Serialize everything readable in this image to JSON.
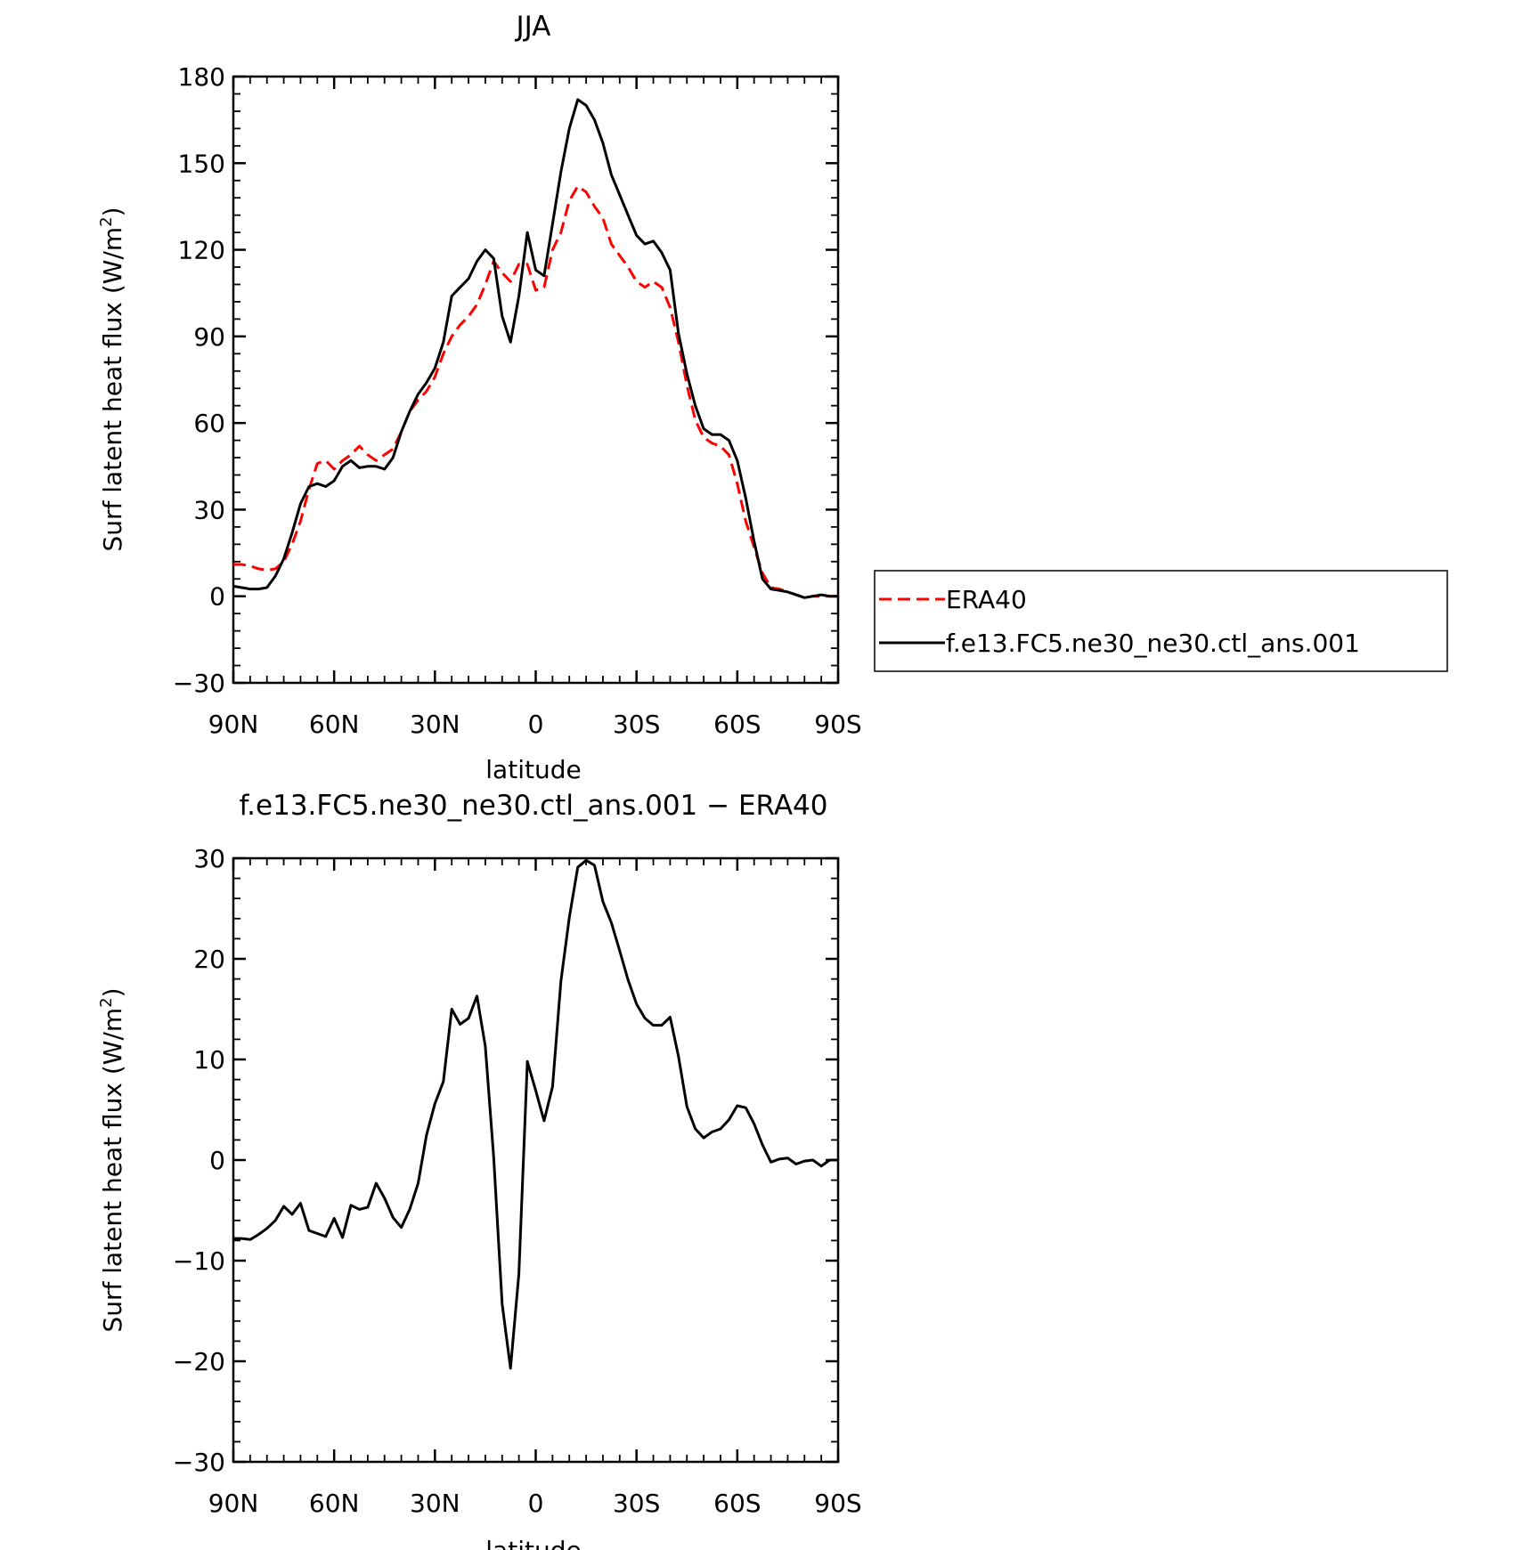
{
  "chart_data": [
    {
      "type": "line",
      "title": "JJA",
      "xlabel": "latitude",
      "ylabel": "Surf latent heat flux (W/m",
      "ylabel_sup": "2",
      "ylabel_close": ")",
      "xlim": [
        -90,
        90
      ],
      "ylim": [
        -30,
        180
      ],
      "x_ticks": [
        -90,
        -60,
        -30,
        0,
        30,
        60,
        90
      ],
      "x_tick_labels": [
        "90N",
        "60N",
        "30N",
        "0",
        "30S",
        "60S",
        "90S"
      ],
      "y_ticks": [
        -30,
        0,
        30,
        60,
        90,
        120,
        150,
        180
      ],
      "y_tick_labels": [
        "−30",
        "0",
        "30",
        "60",
        "90",
        "120",
        "150",
        "180"
      ],
      "grid": false,
      "legend_position": "right",
      "series": [
        {
          "name": "ERA40",
          "color": "#ff0000",
          "style": "dashed",
          "x": [
            -90,
            -87.5,
            -85,
            -82.5,
            -80,
            -77.5,
            -75,
            -72.5,
            -70,
            -67.5,
            -65,
            -62.5,
            -60,
            -57.5,
            -55,
            -52.5,
            -50,
            -47.5,
            -45,
            -42.5,
            -40,
            -37.5,
            -35,
            -32.5,
            -30,
            -27.5,
            -25,
            -22.5,
            -20,
            -17.5,
            -15,
            -12.5,
            -10,
            -7.5,
            -5,
            -2.5,
            0,
            2.5,
            5,
            7.5,
            10,
            12.5,
            15,
            17.5,
            20,
            22.5,
            25,
            27.5,
            30,
            32.5,
            35,
            37.5,
            40,
            42.5,
            45,
            47.5,
            50,
            52.5,
            55,
            57.5,
            60,
            62.5,
            65,
            67.5,
            70,
            72.5,
            75,
            77.5,
            80,
            82.5,
            85,
            87.5,
            90
          ],
          "y": [
            11,
            11,
            10.5,
            9.5,
            9,
            9.5,
            12,
            18,
            26,
            37,
            46,
            47,
            44,
            47,
            49,
            52,
            49,
            47,
            49,
            51,
            57,
            64,
            68,
            71,
            76,
            84,
            90,
            94,
            97,
            101,
            108,
            116,
            112,
            109,
            115,
            115,
            106,
            107,
            120,
            126,
            137,
            142,
            140,
            135,
            131,
            122,
            118,
            114,
            109,
            107,
            109,
            107,
            100,
            88,
            73,
            61,
            55,
            53,
            52,
            49,
            39,
            26,
            17,
            8,
            3,
            2.5,
            1.5,
            0.5,
            -0.5,
            0,
            0,
            0,
            0
          ]
        },
        {
          "name": "f.e13.FC5.ne30_ne30.ctl_ans.001",
          "color": "#000000",
          "style": "solid",
          "x": [
            -90,
            -87.5,
            -85,
            -82.5,
            -80,
            -77.5,
            -75,
            -72.5,
            -70,
            -67.5,
            -65,
            -62.5,
            -60,
            -57.5,
            -55,
            -52.5,
            -50,
            -47.5,
            -45,
            -42.5,
            -40,
            -37.5,
            -35,
            -32.5,
            -30,
            -27.5,
            -25,
            -22.5,
            -20,
            -17.5,
            -15,
            -12.5,
            -10,
            -7.5,
            -5,
            -2.5,
            0,
            2.5,
            5,
            7.5,
            10,
            12.5,
            15,
            17.5,
            20,
            22.5,
            25,
            27.5,
            30,
            32.5,
            35,
            37.5,
            40,
            42.5,
            45,
            47.5,
            50,
            52.5,
            55,
            57.5,
            60,
            62.5,
            65,
            67.5,
            70,
            72.5,
            75,
            77.5,
            80,
            82.5,
            85,
            87.5,
            90
          ],
          "y": [
            3.5,
            3,
            2.5,
            2.5,
            3,
            7,
            13,
            22,
            32,
            38,
            39,
            38,
            40,
            45,
            47,
            44.5,
            45,
            45,
            44,
            48,
            57,
            64,
            70,
            74,
            79,
            88,
            104,
            107,
            110,
            116,
            120,
            117,
            97,
            88,
            104,
            126,
            113,
            111,
            129,
            147,
            162,
            172,
            170,
            165,
            157,
            146,
            139,
            132,
            125,
            122,
            123,
            119,
            113,
            91,
            77,
            66,
            58,
            56,
            56,
            54,
            47,
            34,
            19,
            6,
            2.5,
            2,
            1.5,
            0.5,
            -0.5,
            0,
            0.5,
            0,
            0
          ]
        }
      ]
    },
    {
      "type": "line",
      "title": "f.e13.FC5.ne30_ne30.ctl_ans.001 − ERA40",
      "xlabel": "latitude",
      "ylabel": "Surf latent heat flux (W/m",
      "ylabel_sup": "2",
      "ylabel_close": ")",
      "xlim": [
        -90,
        90
      ],
      "ylim": [
        -30,
        30
      ],
      "x_ticks": [
        -90,
        -60,
        -30,
        0,
        30,
        60,
        90
      ],
      "x_tick_labels": [
        "90N",
        "60N",
        "30N",
        "0",
        "30S",
        "60S",
        "90S"
      ],
      "y_ticks": [
        -30,
        -20,
        -10,
        0,
        10,
        20,
        30
      ],
      "y_tick_labels": [
        "−30",
        "−20",
        "−10",
        "0",
        "10",
        "20",
        "30"
      ],
      "grid": false,
      "series": [
        {
          "color": "#000000",
          "style": "solid",
          "x": [
            -90,
            -87.5,
            -85,
            -82.5,
            -80,
            -77.5,
            -75,
            -72.5,
            -70,
            -67.5,
            -65,
            -62.5,
            -60,
            -57.5,
            -55,
            -52.5,
            -50,
            -47.5,
            -45,
            -42.5,
            -40,
            -37.5,
            -35,
            -32.5,
            -30,
            -27.5,
            -25,
            -22.5,
            -20,
            -17.5,
            -15,
            -12.5,
            -10,
            -7.5,
            -5,
            -2.5,
            0,
            2.5,
            5,
            7.5,
            10,
            12.5,
            15,
            17.5,
            20,
            22.5,
            25,
            27.5,
            30,
            32.5,
            35,
            37.5,
            40,
            42.5,
            45,
            47.5,
            50,
            52.5,
            55,
            57.5,
            60,
            62.5,
            65,
            67.5,
            70,
            72.5,
            75,
            77.5,
            80,
            82.5,
            85,
            87.5,
            90
          ],
          "y": [
            -7.8,
            -7.8,
            -7.9,
            -7.4,
            -6.8,
            -6,
            -4.6,
            -5.4,
            -4.3,
            -7,
            -7.3,
            -7.6,
            -5.8,
            -7.7,
            -4.5,
            -4.9,
            -4.7,
            -2.3,
            -3.8,
            -5.7,
            -6.7,
            -4.9,
            -2.3,
            2.5,
            5.6,
            7.8,
            15,
            13.5,
            14.1,
            16.3,
            11.3,
            0.3,
            -14.3,
            -20.7,
            -11.3,
            9.8,
            6.9,
            3.9,
            7.3,
            17.8,
            24.1,
            29.1,
            29.8,
            29.3,
            25.7,
            23.6,
            20.8,
            17.9,
            15.5,
            14.1,
            13.4,
            13.4,
            14.2,
            10.3,
            5.3,
            3.1,
            2.2,
            2.8,
            3.1,
            4,
            5.4,
            5.2,
            3.6,
            1.5,
            -0.2,
            0.1,
            0.2,
            -0.4,
            -0.1,
            0,
            -0.6,
            0,
            0
          ]
        }
      ]
    }
  ]
}
